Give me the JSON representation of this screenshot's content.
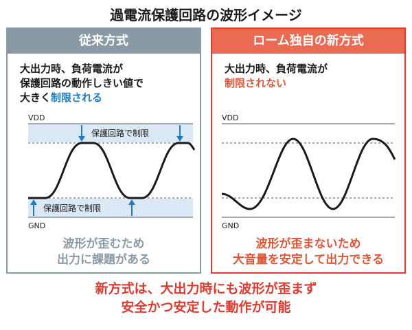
{
  "title": "過電流保護回路の波形イメージ",
  "left_panel": {
    "header": "従来方式",
    "desc_line1": "大出力時、負荷電流が",
    "desc_line2": "保護回路の動作しきい値で",
    "desc_line3_prefix": "大きく",
    "desc_line3_highlight": "制限される",
    "vdd_label": "VDD",
    "gnd_label": "GND",
    "band_top_label": "保護回路で制限",
    "band_bottom_label": "保護回路で制限",
    "caption_line1": "波形が歪むため",
    "caption_line2": "出力に課題がある"
  },
  "right_panel": {
    "header": "ローム独自の新方式",
    "desc_line1": "大出力時、負荷電流が",
    "desc_line2_highlight": "制限されない",
    "vdd_label": "VDD",
    "gnd_label": "GND",
    "caption_line1": "波形が歪まないため",
    "caption_line2": "大音量を安定して出力できる"
  },
  "bottom_text": {
    "line1": "新方式は、大出力時にも波形が歪まず",
    "line2": "安全かつ安定した動作が可能"
  },
  "colors": {
    "gray": "#8a9aa5",
    "red": "#e03a2f",
    "salmon": "#ea6a52",
    "blue": "#1e7bc4",
    "band": "#dbe9f6"
  }
}
